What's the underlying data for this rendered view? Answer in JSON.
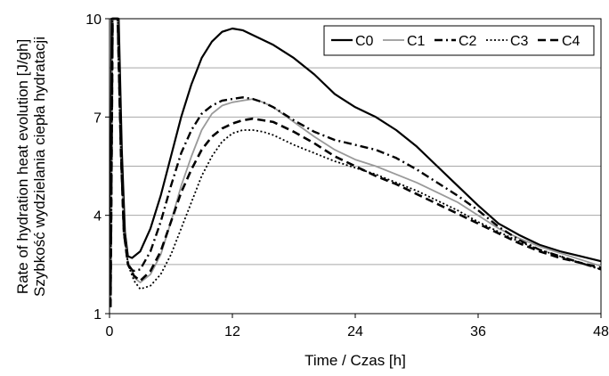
{
  "chart_data": {
    "type": "line",
    "xlabel": "Time / Czas [h]",
    "ylabel_lines": [
      "Rate of hydration heat evolution [J/gh]",
      "Szybkość wydzielania ciepła hydratacji"
    ],
    "xlim": [
      0,
      48
    ],
    "ylim": [
      1,
      10
    ],
    "xticks": [
      0,
      12,
      24,
      36,
      48
    ],
    "xtick_labels": [
      "0",
      "12",
      "24",
      "36",
      "48"
    ],
    "yticks": [
      1,
      4,
      7,
      10
    ],
    "ytick_labels": [
      "1",
      "4",
      "7",
      "10"
    ],
    "gridlines_y": [
      2.5,
      4,
      5.5,
      7,
      8.5,
      10
    ],
    "legend_position": "top-right",
    "series": [
      {
        "name": "C0",
        "style": "solid",
        "color": "#000000",
        "points": [
          [
            0.05,
            1.2
          ],
          [
            0.2,
            10
          ],
          [
            0.9,
            10
          ],
          [
            1.2,
            6
          ],
          [
            1.5,
            3.5
          ],
          [
            1.8,
            2.75
          ],
          [
            2.2,
            2.7
          ],
          [
            3,
            2.9
          ],
          [
            4,
            3.6
          ],
          [
            5,
            4.6
          ],
          [
            6,
            5.8
          ],
          [
            7,
            7.0
          ],
          [
            8,
            8.0
          ],
          [
            9,
            8.8
          ],
          [
            10,
            9.3
          ],
          [
            11,
            9.6
          ],
          [
            12,
            9.7
          ],
          [
            13,
            9.65
          ],
          [
            14,
            9.5
          ],
          [
            15,
            9.35
          ],
          [
            16,
            9.2
          ],
          [
            18,
            8.8
          ],
          [
            20,
            8.3
          ],
          [
            22,
            7.7
          ],
          [
            24,
            7.3
          ],
          [
            26,
            7.0
          ],
          [
            28,
            6.6
          ],
          [
            30,
            6.1
          ],
          [
            32,
            5.5
          ],
          [
            34,
            4.9
          ],
          [
            36,
            4.3
          ],
          [
            38,
            3.75
          ],
          [
            40,
            3.4
          ],
          [
            42,
            3.1
          ],
          [
            44,
            2.9
          ],
          [
            46,
            2.75
          ],
          [
            48,
            2.6
          ]
        ]
      },
      {
        "name": "C1",
        "style": "solid-light",
        "color": "#9a9a9a",
        "points": [
          [
            0.1,
            1.2
          ],
          [
            0.3,
            10
          ],
          [
            0.8,
            10
          ],
          [
            1.1,
            6
          ],
          [
            1.4,
            3.6
          ],
          [
            1.8,
            2.6
          ],
          [
            2.4,
            2.1
          ],
          [
            3,
            1.95
          ],
          [
            4,
            2.2
          ],
          [
            5,
            2.8
          ],
          [
            6,
            3.8
          ],
          [
            7,
            4.9
          ],
          [
            8,
            5.8
          ],
          [
            9,
            6.6
          ],
          [
            10,
            7.1
          ],
          [
            11,
            7.35
          ],
          [
            12,
            7.45
          ],
          [
            13,
            7.5
          ],
          [
            14,
            7.55
          ],
          [
            15,
            7.45
          ],
          [
            16,
            7.3
          ],
          [
            18,
            6.85
          ],
          [
            20,
            6.4
          ],
          [
            22,
            6.0
          ],
          [
            24,
            5.7
          ],
          [
            26,
            5.5
          ],
          [
            28,
            5.25
          ],
          [
            30,
            5.0
          ],
          [
            32,
            4.7
          ],
          [
            34,
            4.4
          ],
          [
            36,
            4.0
          ],
          [
            38,
            3.6
          ],
          [
            40,
            3.3
          ],
          [
            42,
            3.05
          ],
          [
            44,
            2.85
          ],
          [
            46,
            2.65
          ],
          [
            48,
            2.45
          ]
        ]
      },
      {
        "name": "C2",
        "style": "dash-dot",
        "color": "#000000",
        "points": [
          [
            0.1,
            1.2
          ],
          [
            0.3,
            10
          ],
          [
            0.8,
            10
          ],
          [
            1.1,
            6
          ],
          [
            1.4,
            3.5
          ],
          [
            1.8,
            2.5
          ],
          [
            2.3,
            2.3
          ],
          [
            3,
            2.35
          ],
          [
            4,
            2.9
          ],
          [
            5,
            3.8
          ],
          [
            6,
            4.9
          ],
          [
            7,
            5.9
          ],
          [
            8,
            6.6
          ],
          [
            9,
            7.1
          ],
          [
            10,
            7.35
          ],
          [
            11,
            7.5
          ],
          [
            12,
            7.55
          ],
          [
            13,
            7.6
          ],
          [
            14,
            7.55
          ],
          [
            15,
            7.45
          ],
          [
            16,
            7.3
          ],
          [
            18,
            6.9
          ],
          [
            20,
            6.55
          ],
          [
            22,
            6.3
          ],
          [
            24,
            6.15
          ],
          [
            26,
            6.0
          ],
          [
            28,
            5.75
          ],
          [
            30,
            5.4
          ],
          [
            32,
            5.0
          ],
          [
            34,
            4.6
          ],
          [
            36,
            4.15
          ],
          [
            38,
            3.65
          ],
          [
            40,
            3.25
          ],
          [
            42,
            2.95
          ],
          [
            44,
            2.75
          ],
          [
            46,
            2.55
          ],
          [
            48,
            2.35
          ]
        ]
      },
      {
        "name": "C3",
        "style": "dotted",
        "color": "#000000",
        "points": [
          [
            0.1,
            1.2
          ],
          [
            0.3,
            10
          ],
          [
            0.8,
            10
          ],
          [
            1.1,
            6
          ],
          [
            1.4,
            3.6
          ],
          [
            1.8,
            2.5
          ],
          [
            2.4,
            2.0
          ],
          [
            3,
            1.75
          ],
          [
            4,
            1.85
          ],
          [
            5,
            2.2
          ],
          [
            6,
            2.8
          ],
          [
            7,
            3.6
          ],
          [
            8,
            4.4
          ],
          [
            9,
            5.2
          ],
          [
            10,
            5.8
          ],
          [
            11,
            6.25
          ],
          [
            12,
            6.5
          ],
          [
            13,
            6.6
          ],
          [
            14,
            6.6
          ],
          [
            15,
            6.55
          ],
          [
            16,
            6.45
          ],
          [
            18,
            6.15
          ],
          [
            20,
            5.9
          ],
          [
            22,
            5.65
          ],
          [
            24,
            5.45
          ],
          [
            26,
            5.25
          ],
          [
            28,
            5.0
          ],
          [
            30,
            4.75
          ],
          [
            32,
            4.45
          ],
          [
            34,
            4.15
          ],
          [
            36,
            3.8
          ],
          [
            38,
            3.5
          ],
          [
            40,
            3.2
          ],
          [
            42,
            2.95
          ],
          [
            44,
            2.75
          ],
          [
            46,
            2.55
          ],
          [
            48,
            2.35
          ]
        ]
      },
      {
        "name": "C4",
        "style": "dashed",
        "color": "#000000",
        "points": [
          [
            0.1,
            1.2
          ],
          [
            0.3,
            10
          ],
          [
            0.8,
            10
          ],
          [
            1.1,
            6
          ],
          [
            1.4,
            3.5
          ],
          [
            1.8,
            2.5
          ],
          [
            2.4,
            2.15
          ],
          [
            3,
            2.0
          ],
          [
            4,
            2.3
          ],
          [
            5,
            2.9
          ],
          [
            6,
            3.8
          ],
          [
            7,
            4.7
          ],
          [
            8,
            5.4
          ],
          [
            9,
            6.0
          ],
          [
            10,
            6.4
          ],
          [
            11,
            6.65
          ],
          [
            12,
            6.8
          ],
          [
            13,
            6.9
          ],
          [
            14,
            6.95
          ],
          [
            15,
            6.9
          ],
          [
            16,
            6.85
          ],
          [
            18,
            6.55
          ],
          [
            20,
            6.2
          ],
          [
            22,
            5.8
          ],
          [
            24,
            5.5
          ],
          [
            26,
            5.2
          ],
          [
            28,
            4.95
          ],
          [
            30,
            4.65
          ],
          [
            32,
            4.35
          ],
          [
            34,
            4.05
          ],
          [
            36,
            3.75
          ],
          [
            38,
            3.45
          ],
          [
            40,
            3.15
          ],
          [
            42,
            2.9
          ],
          [
            44,
            2.7
          ],
          [
            46,
            2.55
          ],
          [
            48,
            2.4
          ]
        ]
      }
    ]
  }
}
